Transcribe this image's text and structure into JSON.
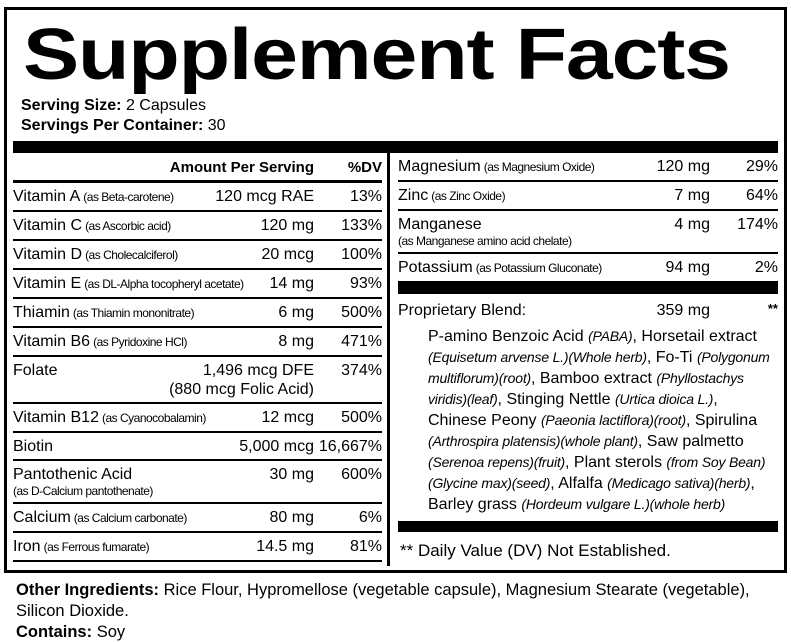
{
  "header": {
    "title": "Supplement Facts",
    "serving_size_label": "Serving Size:",
    "serving_size_value": "2 Capsules",
    "servings_label": "Servings Per Container:",
    "servings_value": "30"
  },
  "left": {
    "header": {
      "amount": "Amount Per Serving",
      "dv": "%DV"
    },
    "rows": [
      {
        "name": "Vitamin A",
        "qual": "(as Beta-carotene)",
        "amount": "120 mcg RAE",
        "dv": "13%"
      },
      {
        "name": "Vitamin C",
        "qual": "(as Ascorbic acid)",
        "amount": "120 mg",
        "dv": "133%"
      },
      {
        "name": "Vitamin D",
        "qual": "(as Cholecalciferol)",
        "amount": "20 mcg",
        "dv": "100%"
      },
      {
        "name": "Vitamin E",
        "qual": "(as DL-Alpha tocopheryl acetate)",
        "amount": "14 mg",
        "dv": "93%"
      },
      {
        "name": "Thiamin",
        "qual": "(as Thiamin mononitrate)",
        "amount": "6 mg",
        "dv": "500%"
      },
      {
        "name": "Vitamin B6",
        "qual": "(as Pyridoxine HCl)",
        "amount": "8 mg",
        "dv": "471%"
      },
      {
        "name": "Folate",
        "amount": "1,496 mcg DFE",
        "amount2": "(880 mcg Folic Acid)",
        "dv": "374%"
      },
      {
        "name": "Vitamin B12",
        "qual": "(as Cyanocobalamin)",
        "amount": "12 mcg",
        "dv": "500%"
      },
      {
        "name": "Biotin",
        "amount": "5,000 mcg",
        "dv": "16,667%"
      },
      {
        "name": "Pantothenic Acid",
        "qual2": "(as D-Calcium pantothenate)",
        "amount": "30 mg",
        "dv": "600%"
      },
      {
        "name": "Calcium",
        "qual": "(as Calcium carbonate)",
        "amount": "80 mg",
        "dv": "6%"
      },
      {
        "name": "Iron",
        "qual": "(as Ferrous fumarate)",
        "amount": "14.5 mg",
        "dv": "81%"
      }
    ]
  },
  "right": {
    "rows": [
      {
        "name": "Magnesium",
        "qual": "(as Magnesium Oxide)",
        "amount": "120 mg",
        "dv": "29%"
      },
      {
        "name": "Zinc",
        "qual": "(as Zinc Oxide)",
        "amount": "7 mg",
        "dv": "64%"
      },
      {
        "name": "Manganese",
        "qual2": "(as Manganese amino acid chelate)",
        "amount": "4 mg",
        "dv": "174%"
      },
      {
        "name": "Potassium",
        "qual": "(as Potassium Gluconate)",
        "amount": "94 mg",
        "dv": "2%"
      }
    ],
    "blend": {
      "label": "Proprietary Blend:",
      "amount": "359 mg",
      "dv_symbol": "**",
      "segments": [
        {
          "t": "P-amino Benzoic Acid ",
          "i": false
        },
        {
          "t": "(PABA)",
          "i": true
        },
        {
          "t": ", Horsetail extract ",
          "i": false
        },
        {
          "t": "(Equisetum arvense L.)(Whole herb)",
          "i": true
        },
        {
          "t": ", Fo-Ti ",
          "i": false
        },
        {
          "t": "(Polygonum multiflorum)(root)",
          "i": true
        },
        {
          "t": ", Bamboo extract ",
          "i": false
        },
        {
          "t": "(Phyllostachys viridis)(leaf)",
          "i": true
        },
        {
          "t": ", Stinging Nettle ",
          "i": false
        },
        {
          "t": "(Urtica dioica L.)",
          "i": true
        },
        {
          "t": ", Chinese Peony ",
          "i": false
        },
        {
          "t": "(Paeonia lactiflora)(root)",
          "i": true
        },
        {
          "t": ", Spirulina ",
          "i": false
        },
        {
          "t": "(Arthrospira platensis)(whole plant)",
          "i": true
        },
        {
          "t": ", Saw palmetto ",
          "i": false
        },
        {
          "t": "(Serenoa repens)(fruit)",
          "i": true
        },
        {
          "t": ", Plant sterols ",
          "i": false
        },
        {
          "t": "(from Soy Bean)(Glycine max)(seed)",
          "i": true
        },
        {
          "t": ", Alfalfa ",
          "i": false
        },
        {
          "t": "(Medicago sativa)(herb)",
          "i": true
        },
        {
          "t": ", Barley grass ",
          "i": false
        },
        {
          "t": "(Hordeum vulgare L.)(whole herb)",
          "i": true
        }
      ]
    },
    "footnote": "** Daily Value (DV) Not Established."
  },
  "footer": {
    "other_label": "Other Ingredients:",
    "other_value": "Rice Flour, Hypromellose (vegetable capsule), Magnesium Stearate (vegetable), Silicon Dioxide.",
    "contains_label": "Contains:",
    "contains_value": "Soy"
  },
  "colors": {
    "ink": "#000000",
    "paper": "#ffffff"
  }
}
